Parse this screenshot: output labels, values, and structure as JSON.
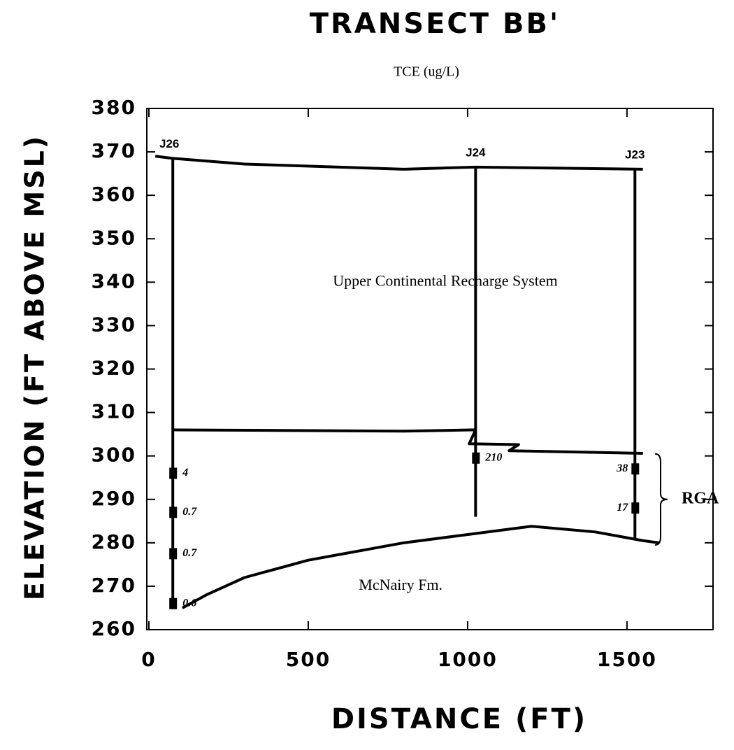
{
  "chart_data": {
    "type": "cross-section",
    "title": "TRANSECT BB'",
    "subtitle": "TCE (ug/L)",
    "x_label": "DISTANCE (FT)",
    "y_label": "ELEVATION (FT ABOVE MSL)",
    "xlim": [
      0,
      1770
    ],
    "ylim": [
      260,
      380
    ],
    "xticks": [
      0,
      500,
      1000,
      1500
    ],
    "yticks": [
      260,
      270,
      280,
      290,
      300,
      310,
      320,
      330,
      340,
      350,
      360,
      370,
      380
    ],
    "wells": [
      {
        "name": "J26",
        "x": 75,
        "top": 368.5,
        "bottom": 265,
        "samples": [
          {
            "elevation": 296,
            "value": 4
          },
          {
            "elevation": 287,
            "value": 0.7
          },
          {
            "elevation": 277.5,
            "value": 0.7
          },
          {
            "elevation": 266,
            "value": 0.6
          }
        ]
      },
      {
        "name": "J24",
        "x": 1025,
        "top": 366.5,
        "bottom": 286,
        "samples": [
          {
            "elevation": 299.5,
            "value": 210
          }
        ]
      },
      {
        "name": "J23",
        "x": 1525,
        "top": 366,
        "bottom": 281,
        "samples": [
          {
            "elevation": 297,
            "value": 38
          },
          {
            "elevation": 288,
            "value": 17
          }
        ]
      }
    ],
    "boundaries": [
      {
        "x": [
          20,
          75,
          300,
          800,
          1025,
          1550
        ],
        "y": [
          369,
          368.5,
          367.2,
          366,
          366.5,
          366
        ]
      },
      {
        "x": [
          75,
          800,
          1025,
          1005,
          1160,
          1130,
          1550
        ],
        "y": [
          306,
          305.7,
          306,
          302.8,
          302.6,
          301.2,
          300.6
        ]
      },
      {
        "x": [
          105,
          180,
          300,
          500,
          800,
          1200,
          1400,
          1550,
          1600
        ],
        "y": [
          265,
          268,
          272,
          276,
          280,
          283.8,
          282.5,
          280.5,
          280
        ]
      }
    ],
    "annotations": [
      "Upper Continental Recharge System",
      "McNairy Fm.",
      "RGA"
    ]
  }
}
